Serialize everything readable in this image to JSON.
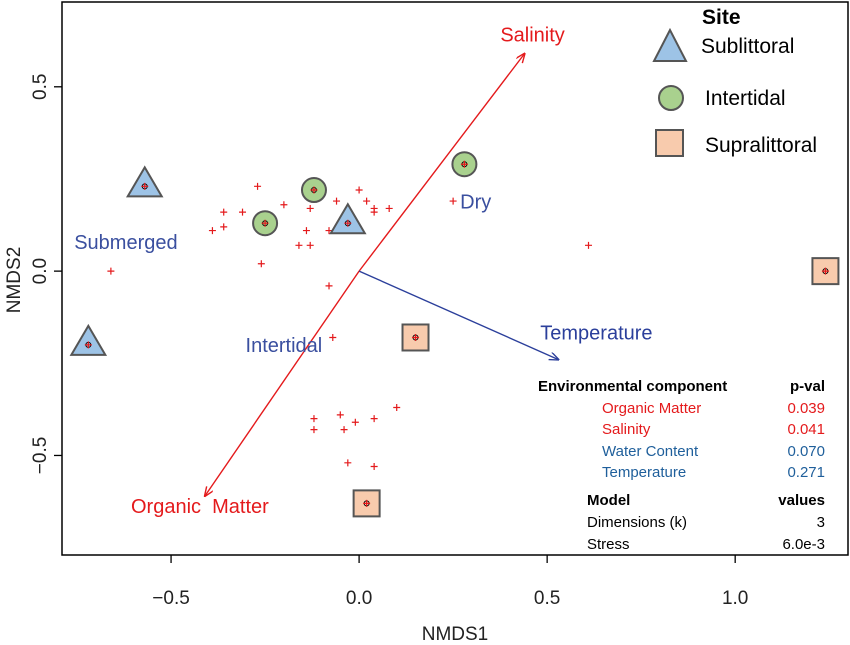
{
  "chart_data": {
    "type": "scatter",
    "xlabel": "NMDS1",
    "ylabel": "NMDS2",
    "xlim": [
      -0.79,
      1.3
    ],
    "ylim": [
      -0.77,
      0.73
    ],
    "xticks": [
      -0.5,
      0.0,
      0.5,
      1.0
    ],
    "xtick_labels": [
      "−0.5",
      "0.0",
      "0.5",
      "1.0"
    ],
    "yticks": [
      -0.5,
      0.0,
      0.5
    ],
    "ytick_labels": [
      "−0.5",
      "0.0",
      "0.5"
    ],
    "grid": false,
    "legend": {
      "title": "Site",
      "position": "top-right",
      "entries": [
        {
          "label": "Sublittoral",
          "shape": "triangle",
          "fill": "#9DC3E6"
        },
        {
          "label": "Intertidal",
          "shape": "circle",
          "fill": "#A9D18E"
        },
        {
          "label": "Supralittoral",
          "shape": "square",
          "fill": "#F8CBAD"
        }
      ]
    },
    "sites": [
      {
        "group": "Sublittoral",
        "points": [
          [
            -0.57,
            0.23
          ],
          [
            -0.03,
            0.13
          ],
          [
            -0.72,
            -0.2
          ]
        ]
      },
      {
        "group": "Intertidal",
        "points": [
          [
            -0.12,
            0.22
          ],
          [
            -0.25,
            0.13
          ],
          [
            0.28,
            0.29
          ]
        ]
      },
      {
        "group": "Supralittoral",
        "points": [
          [
            0.15,
            -0.18
          ],
          [
            1.24,
            0.0
          ],
          [
            0.02,
            -0.63
          ]
        ]
      }
    ],
    "species": [
      [
        -0.27,
        0.23
      ],
      [
        -0.2,
        0.18
      ],
      [
        -0.13,
        0.17
      ],
      [
        -0.06,
        0.19
      ],
      [
        -0.03,
        0.14
      ],
      [
        0.0,
        0.22
      ],
      [
        0.02,
        0.19
      ],
      [
        0.04,
        0.17
      ],
      [
        0.04,
        0.16
      ],
      [
        0.08,
        0.17
      ],
      [
        0.25,
        0.19
      ],
      [
        -0.36,
        0.16
      ],
      [
        -0.31,
        0.16
      ],
      [
        -0.36,
        0.12
      ],
      [
        -0.39,
        0.11
      ],
      [
        -0.26,
        0.12
      ],
      [
        -0.24,
        0.11
      ],
      [
        -0.14,
        0.11
      ],
      [
        -0.08,
        0.11
      ],
      [
        -0.13,
        0.07
      ],
      [
        -0.16,
        0.07
      ],
      [
        -0.26,
        0.02
      ],
      [
        -0.66,
        0.0
      ],
      [
        -0.08,
        -0.04
      ],
      [
        0.61,
        0.07
      ],
      [
        -0.07,
        -0.18
      ],
      [
        -0.12,
        -0.4
      ],
      [
        -0.12,
        -0.43
      ],
      [
        -0.05,
        -0.39
      ],
      [
        -0.04,
        -0.43
      ],
      [
        -0.01,
        -0.41
      ],
      [
        0.04,
        -0.4
      ],
      [
        0.1,
        -0.37
      ],
      [
        0.04,
        -0.53
      ],
      [
        -0.03,
        -0.52
      ]
    ],
    "vectors": [
      {
        "label": "Salinity",
        "end": [
          0.44,
          0.59
        ],
        "color": "#E41A1C"
      },
      {
        "label": "Organic  Matter",
        "end": [
          -0.41,
          -0.61
        ],
        "color": "#E41A1C"
      },
      {
        "label": "Temperature",
        "end": [
          0.53,
          -0.24
        ],
        "color": "#2B3F9B"
      }
    ],
    "annotations": [
      {
        "text": "Submerged",
        "x": -0.62,
        "y": 0.06,
        "color": "#3A4F9F"
      },
      {
        "text": "Dry",
        "x": 0.31,
        "y": 0.17,
        "color": "#3A4F9F"
      },
      {
        "text": "Intertidal",
        "x": -0.2,
        "y": -0.22,
        "color": "#3A4F9F"
      }
    ],
    "table": {
      "headers": [
        "Environmental component",
        "p-val"
      ],
      "rows": [
        {
          "component": "Organic Matter",
          "pval": "0.039",
          "color": "#E41A1C"
        },
        {
          "component": "Salinity",
          "pval": "0.041",
          "color": "#E41A1C"
        },
        {
          "component": "Water Content",
          "pval": "0.070",
          "color": "#1F5F9B"
        },
        {
          "component": "Temperature",
          "pval": "0.271",
          "color": "#1F5F9B"
        }
      ],
      "model_headers": [
        "Model",
        "values"
      ],
      "model_rows": [
        {
          "label": "Dimensions (k)",
          "value": "3"
        },
        {
          "label": "Stress",
          "value": "6.0e-3"
        }
      ]
    }
  }
}
